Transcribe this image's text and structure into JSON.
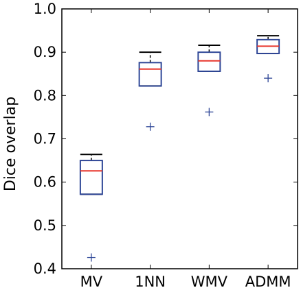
{
  "chart_data": {
    "type": "box",
    "title": "",
    "xlabel": "",
    "ylabel": "Dice overlap",
    "ylim": [
      0.4,
      1.0
    ],
    "yticks": [
      "0.4",
      "0.5",
      "0.6",
      "0.7",
      "0.8",
      "0.9",
      "1.0"
    ],
    "categories": [
      "MV",
      "1NN",
      "WMV",
      "ADMM"
    ],
    "boxes": [
      {
        "category": "MV",
        "whisker_low": 0.572,
        "q1": 0.572,
        "median": 0.626,
        "q3": 0.65,
        "whisker_high": 0.664,
        "outliers": [
          0.426
        ]
      },
      {
        "category": "1NN",
        "whisker_low": 0.822,
        "q1": 0.822,
        "median": 0.861,
        "q3": 0.876,
        "whisker_high": 0.9,
        "outliers": [
          0.728
        ]
      },
      {
        "category": "WMV",
        "whisker_low": 0.856,
        "q1": 0.856,
        "median": 0.88,
        "q3": 0.9,
        "whisker_high": 0.916,
        "outliers": [
          0.762
        ]
      },
      {
        "category": "ADMM",
        "whisker_low": 0.897,
        "q1": 0.897,
        "median": 0.914,
        "q3": 0.929,
        "whisker_high": 0.938,
        "outliers": [
          0.84
        ]
      }
    ],
    "grid": false,
    "colors": {
      "box": "#2f4797",
      "median": "#e8352b",
      "whisker": "#000000",
      "outlier": "#2f4797",
      "axes": "#000000"
    }
  }
}
